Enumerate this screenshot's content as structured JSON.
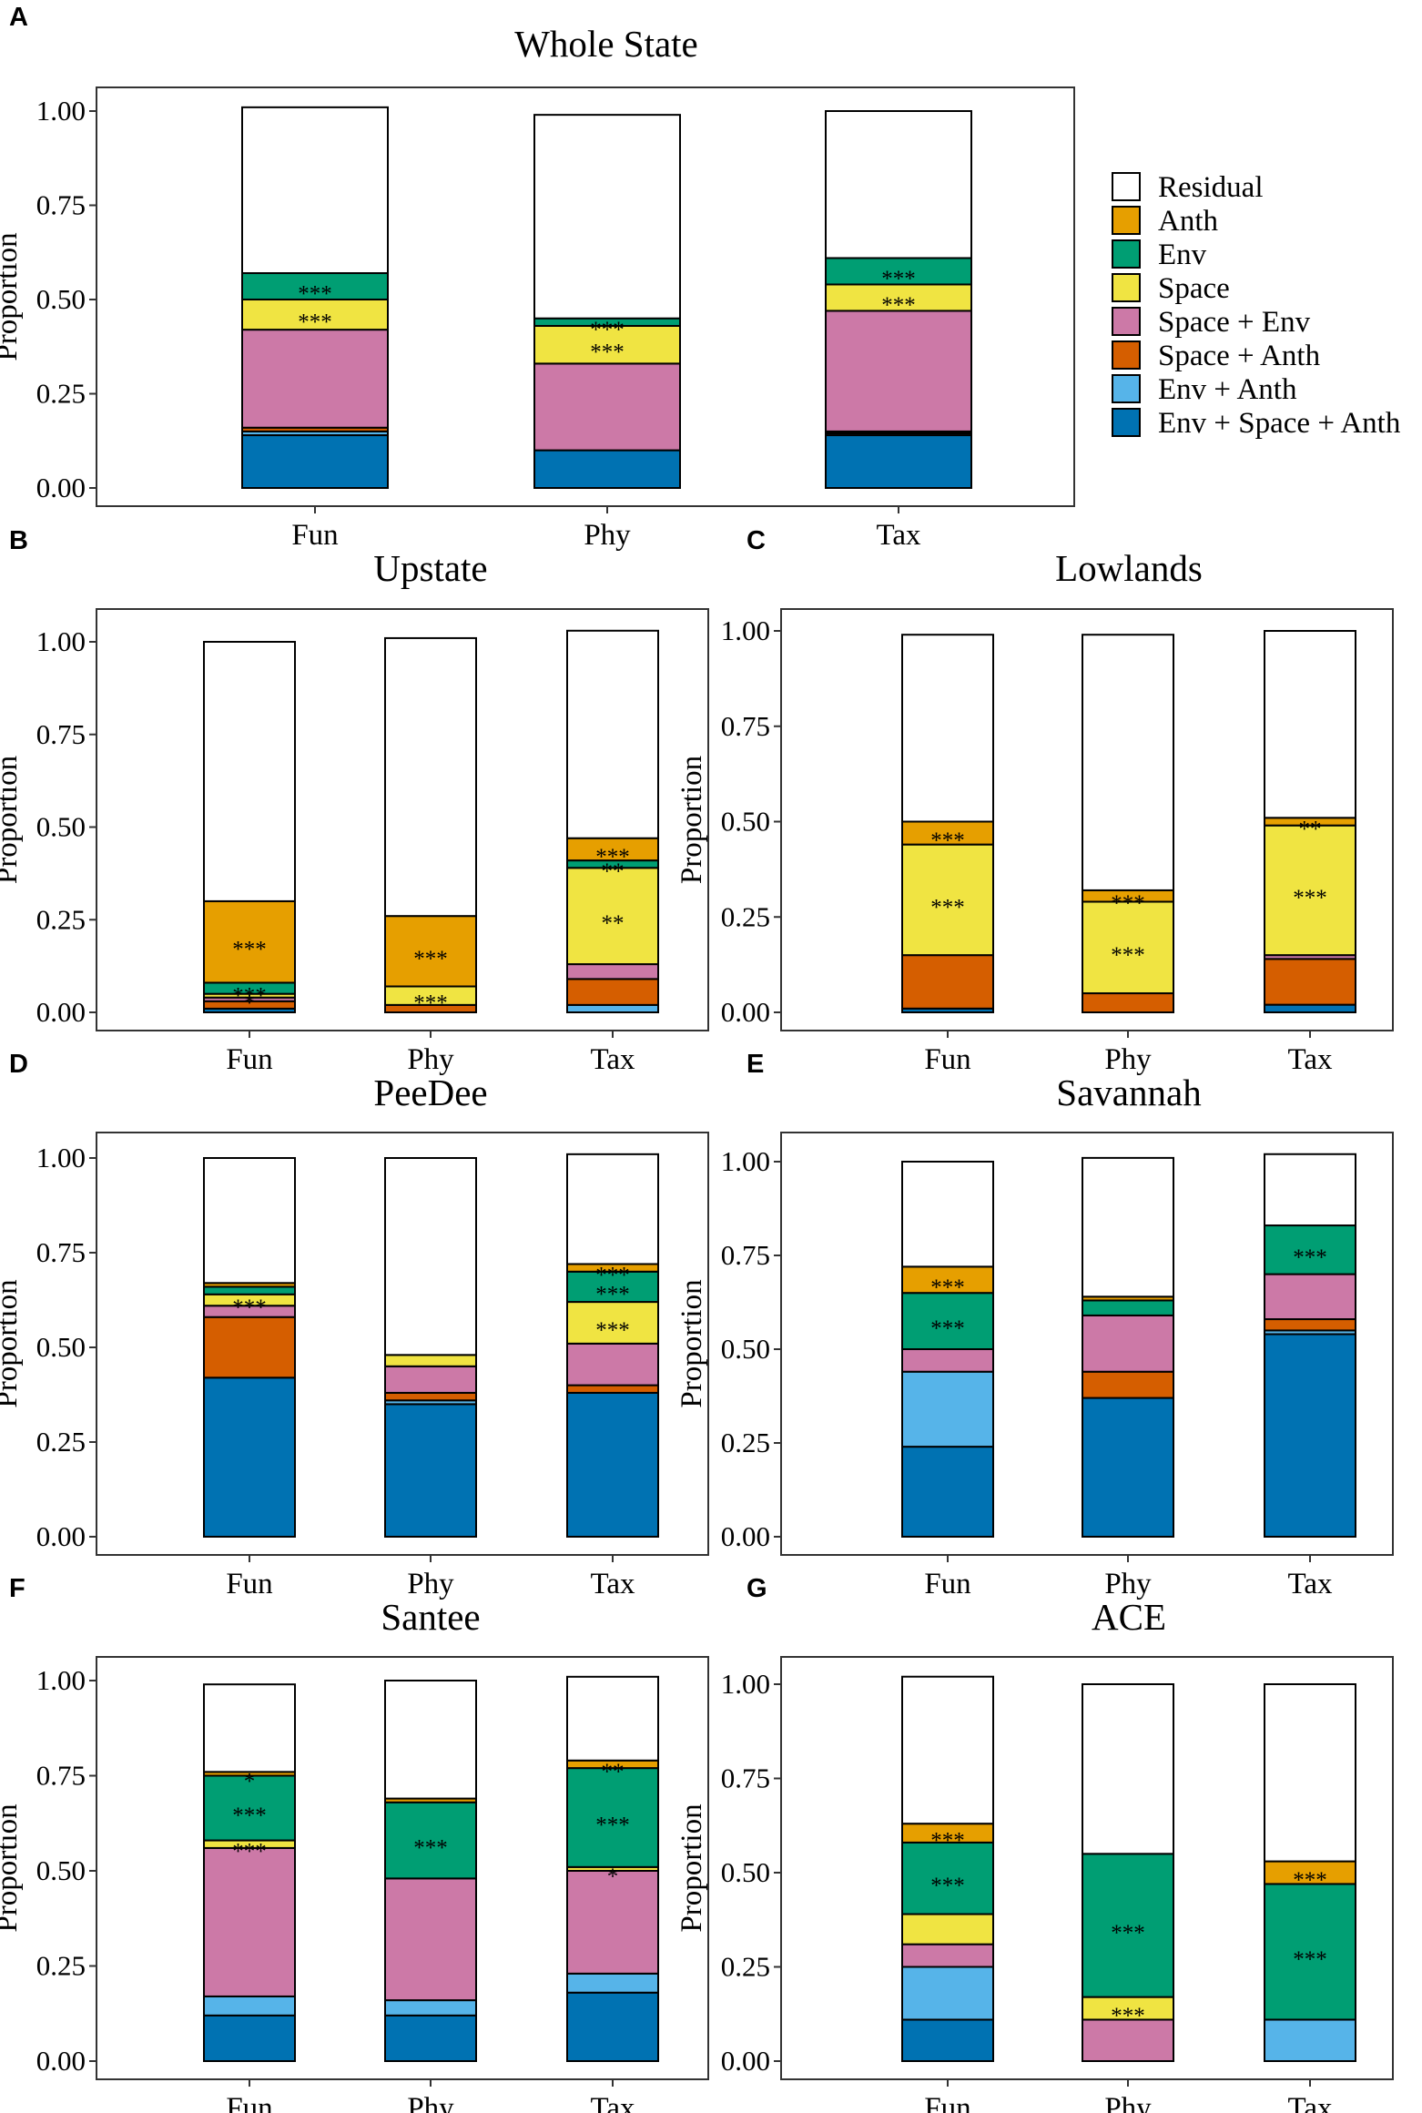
{
  "figure": {
    "y_axis_label": "Proportion",
    "y_ticks": [
      "0.00",
      "0.25",
      "0.50",
      "0.75",
      "1.00"
    ]
  },
  "legend": [
    {
      "key": "residual",
      "label": "Residual",
      "color": "#FFFFFF"
    },
    {
      "key": "anth",
      "label": "Anth",
      "color": "#E69F00"
    },
    {
      "key": "env",
      "label": "Env",
      "color": "#009E73"
    },
    {
      "key": "space",
      "label": "Space",
      "color": "#F0E442"
    },
    {
      "key": "space_env",
      "label": "Space + Env",
      "color": "#CC79A7"
    },
    {
      "key": "space_anth",
      "label": "Space + Anth",
      "color": "#D55E00"
    },
    {
      "key": "env_anth",
      "label": "Env + Anth",
      "color": "#56B4E9"
    },
    {
      "key": "env_space_anth",
      "label": "Env + Space + Anth",
      "color": "#0072B2"
    }
  ],
  "chart_data": [
    {
      "panel": "A",
      "type": "bar",
      "stacked": true,
      "title": "Whole State",
      "categories": [
        "Fun",
        "Phy",
        "Tax"
      ],
      "ylabel": "Proportion",
      "ylim": [
        0,
        1.0
      ],
      "series": [
        {
          "name": "Env + Space + Anth",
          "values": [
            0.14,
            0.1,
            0.14
          ]
        },
        {
          "name": "Env + Anth",
          "values": [
            0.01,
            0.0,
            0.005
          ]
        },
        {
          "name": "Space + Anth",
          "values": [
            0.01,
            0.0,
            0.005
          ]
        },
        {
          "name": "Space + Env",
          "values": [
            0.26,
            0.23,
            0.32
          ]
        },
        {
          "name": "Space",
          "values": [
            0.08,
            0.1,
            0.07
          ]
        },
        {
          "name": "Env",
          "values": [
            0.07,
            0.02,
            0.07
          ]
        },
        {
          "name": "Anth",
          "values": [
            0.0,
            0.0,
            0.0
          ]
        },
        {
          "name": "Residual",
          "values": [
            0.44,
            0.54,
            0.39
          ]
        }
      ],
      "annotations": [
        {
          "category": "Fun",
          "series": "Env",
          "text": "***"
        },
        {
          "category": "Fun",
          "series": "Space",
          "text": "***"
        },
        {
          "category": "Phy",
          "series": "Env",
          "text": "***"
        },
        {
          "category": "Phy",
          "series": "Space",
          "text": "***"
        },
        {
          "category": "Tax",
          "series": "Env",
          "text": "***"
        },
        {
          "category": "Tax",
          "series": "Space",
          "text": "***"
        }
      ]
    },
    {
      "panel": "B",
      "type": "bar",
      "stacked": true,
      "title": "Upstate",
      "categories": [
        "Fun",
        "Phy",
        "Tax"
      ],
      "ylabel": "Proportion",
      "ylim": [
        0,
        1.0
      ],
      "series": [
        {
          "name": "Env + Space + Anth",
          "values": [
            0.01,
            0.0,
            0.0
          ]
        },
        {
          "name": "Env + Anth",
          "values": [
            0.0,
            0.0,
            0.02
          ]
        },
        {
          "name": "Space + Anth",
          "values": [
            0.02,
            0.02,
            0.07
          ]
        },
        {
          "name": "Space + Env",
          "values": [
            0.01,
            0.0,
            0.04
          ]
        },
        {
          "name": "Space",
          "values": [
            0.01,
            0.05,
            0.26
          ]
        },
        {
          "name": "Env",
          "values": [
            0.03,
            0.0,
            0.02
          ]
        },
        {
          "name": "Anth",
          "values": [
            0.22,
            0.19,
            0.06
          ]
        },
        {
          "name": "Residual",
          "values": [
            0.7,
            0.75,
            0.56
          ]
        }
      ],
      "annotations": [
        {
          "category": "Fun",
          "series": "Anth",
          "text": "***"
        },
        {
          "category": "Fun",
          "series": "Env",
          "text": "***"
        },
        {
          "category": "Fun",
          "series": "Space",
          "text": "*"
        },
        {
          "category": "Phy",
          "series": "Anth",
          "text": "***"
        },
        {
          "category": "Phy",
          "series": "Space",
          "text": "***"
        },
        {
          "category": "Tax",
          "series": "Anth",
          "text": "***"
        },
        {
          "category": "Tax",
          "series": "Env",
          "text": "**"
        },
        {
          "category": "Tax",
          "series": "Space",
          "text": "**"
        }
      ]
    },
    {
      "panel": "C",
      "type": "bar",
      "stacked": true,
      "title": "Lowlands",
      "categories": [
        "Fun",
        "Phy",
        "Tax"
      ],
      "ylabel": "Proportion",
      "ylim": [
        0,
        1.0
      ],
      "series": [
        {
          "name": "Env + Space + Anth",
          "values": [
            0.01,
            0.0,
            0.02
          ]
        },
        {
          "name": "Env + Anth",
          "values": [
            0.0,
            0.0,
            0.0
          ]
        },
        {
          "name": "Space + Anth",
          "values": [
            0.14,
            0.05,
            0.12
          ]
        },
        {
          "name": "Space + Env",
          "values": [
            0.0,
            0.0,
            0.01
          ]
        },
        {
          "name": "Space",
          "values": [
            0.29,
            0.24,
            0.34
          ]
        },
        {
          "name": "Env",
          "values": [
            0.0,
            0.0,
            0.0
          ]
        },
        {
          "name": "Anth",
          "values": [
            0.06,
            0.03,
            0.02
          ]
        },
        {
          "name": "Residual",
          "values": [
            0.49,
            0.67,
            0.49
          ]
        }
      ],
      "annotations": [
        {
          "category": "Fun",
          "series": "Anth",
          "text": "***"
        },
        {
          "category": "Fun",
          "series": "Space",
          "text": "***"
        },
        {
          "category": "Phy",
          "series": "Anth",
          "text": "***"
        },
        {
          "category": "Phy",
          "series": "Space",
          "text": "***"
        },
        {
          "category": "Tax",
          "series": "Anth",
          "text": "**"
        },
        {
          "category": "Tax",
          "series": "Space",
          "text": "***"
        }
      ]
    },
    {
      "panel": "D",
      "type": "bar",
      "stacked": true,
      "title": "PeeDee",
      "categories": [
        "Fun",
        "Phy",
        "Tax"
      ],
      "ylabel": "Proportion",
      "ylim": [
        0,
        1.0
      ],
      "series": [
        {
          "name": "Env + Space + Anth",
          "values": [
            0.42,
            0.35,
            0.38
          ]
        },
        {
          "name": "Env + Anth",
          "values": [
            0.0,
            0.01,
            0.0
          ]
        },
        {
          "name": "Space + Anth",
          "values": [
            0.16,
            0.02,
            0.02
          ]
        },
        {
          "name": "Space + Env",
          "values": [
            0.03,
            0.07,
            0.11
          ]
        },
        {
          "name": "Space",
          "values": [
            0.03,
            0.03,
            0.11
          ]
        },
        {
          "name": "Env",
          "values": [
            0.02,
            0.0,
            0.08
          ]
        },
        {
          "name": "Anth",
          "values": [
            0.01,
            0.0,
            0.02
          ]
        },
        {
          "name": "Residual",
          "values": [
            0.33,
            0.52,
            0.29
          ]
        }
      ],
      "annotations": [
        {
          "category": "Fun",
          "series": "Space",
          "text": "***"
        },
        {
          "category": "Tax",
          "series": "Anth",
          "text": "***"
        },
        {
          "category": "Tax",
          "series": "Env",
          "text": "***"
        },
        {
          "category": "Tax",
          "series": "Space",
          "text": "***"
        }
      ]
    },
    {
      "panel": "E",
      "type": "bar",
      "stacked": true,
      "title": "Savannah",
      "categories": [
        "Fun",
        "Phy",
        "Tax"
      ],
      "ylabel": "Proportion",
      "ylim": [
        0,
        1.0
      ],
      "series": [
        {
          "name": "Env + Space + Anth",
          "values": [
            0.24,
            0.37,
            0.54
          ]
        },
        {
          "name": "Env + Anth",
          "values": [
            0.2,
            0.0,
            0.01
          ]
        },
        {
          "name": "Space + Anth",
          "values": [
            0.0,
            0.07,
            0.03
          ]
        },
        {
          "name": "Space + Env",
          "values": [
            0.06,
            0.15,
            0.12
          ]
        },
        {
          "name": "Space",
          "values": [
            0.0,
            0.0,
            0.0
          ]
        },
        {
          "name": "Env",
          "values": [
            0.15,
            0.04,
            0.13
          ]
        },
        {
          "name": "Anth",
          "values": [
            0.07,
            0.01,
            0.0
          ]
        },
        {
          "name": "Residual",
          "values": [
            0.28,
            0.37,
            0.19
          ]
        }
      ],
      "annotations": [
        {
          "category": "Fun",
          "series": "Anth",
          "text": "***"
        },
        {
          "category": "Fun",
          "series": "Env",
          "text": "***"
        },
        {
          "category": "Tax",
          "series": "Env",
          "text": "***"
        }
      ]
    },
    {
      "panel": "F",
      "type": "bar",
      "stacked": true,
      "title": "Santee",
      "categories": [
        "Fun",
        "Phy",
        "Tax"
      ],
      "ylabel": "Proportion",
      "ylim": [
        0,
        1.0
      ],
      "series": [
        {
          "name": "Env + Space + Anth",
          "values": [
            0.12,
            0.12,
            0.18
          ]
        },
        {
          "name": "Env + Anth",
          "values": [
            0.05,
            0.04,
            0.05
          ]
        },
        {
          "name": "Space + Anth",
          "values": [
            0.0,
            0.0,
            0.0
          ]
        },
        {
          "name": "Space + Env",
          "values": [
            0.39,
            0.32,
            0.27
          ]
        },
        {
          "name": "Space",
          "values": [
            0.02,
            0.0,
            0.01
          ]
        },
        {
          "name": "Env",
          "values": [
            0.17,
            0.2,
            0.26
          ]
        },
        {
          "name": "Anth",
          "values": [
            0.01,
            0.01,
            0.02
          ]
        },
        {
          "name": "Residual",
          "values": [
            0.23,
            0.31,
            0.22
          ]
        }
      ],
      "annotations": [
        {
          "category": "Fun",
          "series": "Anth",
          "text": "*"
        },
        {
          "category": "Fun",
          "series": "Env",
          "text": "***"
        },
        {
          "category": "Fun",
          "series": "Space",
          "text": "***"
        },
        {
          "category": "Phy",
          "series": "Env",
          "text": "***"
        },
        {
          "category": "Tax",
          "series": "Anth",
          "text": "**"
        },
        {
          "category": "Tax",
          "series": "Env",
          "text": "***"
        },
        {
          "category": "Tax",
          "series": "Space",
          "text": "*"
        }
      ]
    },
    {
      "panel": "G",
      "type": "bar",
      "stacked": true,
      "title": "ACE",
      "categories": [
        "Fun",
        "Phy",
        "Tax"
      ],
      "ylabel": "Proportion",
      "ylim": [
        0,
        1.0
      ],
      "series": [
        {
          "name": "Env + Space + Anth",
          "values": [
            0.11,
            0.0,
            0.0
          ]
        },
        {
          "name": "Env + Anth",
          "values": [
            0.14,
            0.0,
            0.11
          ]
        },
        {
          "name": "Space + Anth",
          "values": [
            0.0,
            0.0,
            0.0
          ]
        },
        {
          "name": "Space + Env",
          "values": [
            0.06,
            0.11,
            0.0
          ]
        },
        {
          "name": "Space",
          "values": [
            0.08,
            0.06,
            0.0
          ]
        },
        {
          "name": "Env",
          "values": [
            0.19,
            0.38,
            0.36
          ]
        },
        {
          "name": "Anth",
          "values": [
            0.05,
            0.0,
            0.06
          ]
        },
        {
          "name": "Residual",
          "values": [
            0.39,
            0.45,
            0.47
          ]
        }
      ],
      "annotations": [
        {
          "category": "Fun",
          "series": "Anth",
          "text": "***"
        },
        {
          "category": "Fun",
          "series": "Env",
          "text": "***"
        },
        {
          "category": "Phy",
          "series": "Env",
          "text": "***"
        },
        {
          "category": "Phy",
          "series": "Space",
          "text": "***"
        },
        {
          "category": "Tax",
          "series": "Anth",
          "text": "***"
        },
        {
          "category": "Tax",
          "series": "Env",
          "text": "***"
        }
      ]
    }
  ]
}
